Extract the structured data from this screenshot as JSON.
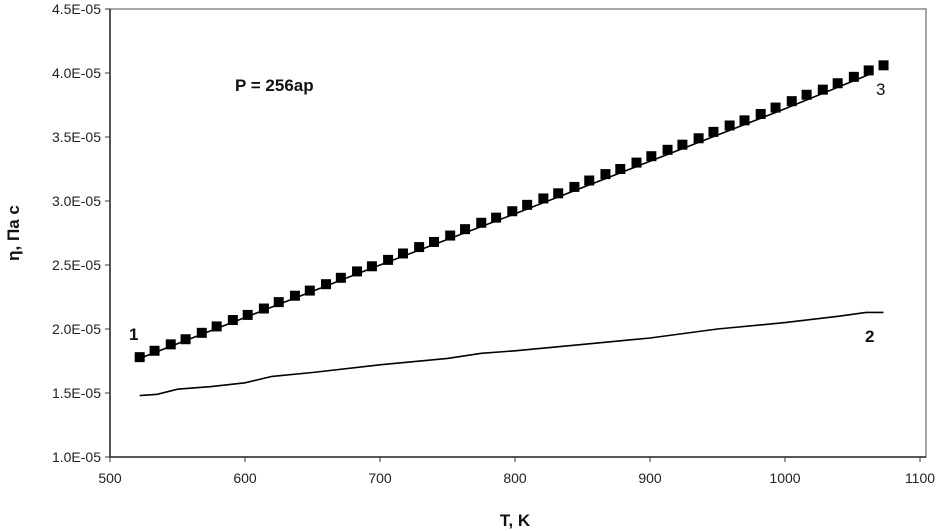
{
  "chart_data": {
    "type": "line",
    "xlabel": "T, K",
    "ylabel": "η, Па с",
    "xlim": [
      500,
      1100
    ],
    "ylim": [
      1e-05,
      4.5e-05
    ],
    "x_ticks": [
      500,
      600,
      700,
      800,
      900,
      1000,
      1100
    ],
    "x_tick_labels": [
      "500",
      "600",
      "700",
      "800",
      "900",
      "1000",
      "1100"
    ],
    "y_ticks": [
      1e-05,
      1.5e-05,
      2e-05,
      2.5e-05,
      3e-05,
      3.5e-05,
      4e-05,
      4.5e-05
    ],
    "y_tick_labels": [
      "1.0E-05",
      "1.5E-05",
      "2.0E-05",
      "2.5E-05",
      "3.0E-05",
      "3.5E-05",
      "4.0E-05",
      "4.5E-05"
    ],
    "grid": false,
    "annotation": "P = 256ap",
    "series": [
      {
        "label": "1",
        "style": "square markers",
        "color": "#000000",
        "x": [
          522,
          533,
          545,
          556,
          568,
          579,
          591,
          602,
          614,
          625,
          637,
          648,
          660,
          671,
          683,
          694,
          706,
          717,
          729,
          740,
          752,
          763,
          775,
          786,
          798,
          809,
          821,
          832,
          844,
          855,
          867,
          878,
          890,
          901,
          913,
          924,
          936,
          947,
          959,
          970,
          982,
          993,
          1005,
          1016,
          1028,
          1039,
          1051,
          1062,
          1073
        ],
        "y": [
          1.78e-05,
          1.83e-05,
          1.88e-05,
          1.92e-05,
          1.97e-05,
          2.02e-05,
          2.07e-05,
          2.11e-05,
          2.16e-05,
          2.21e-05,
          2.26e-05,
          2.3e-05,
          2.35e-05,
          2.4e-05,
          2.45e-05,
          2.49e-05,
          2.54e-05,
          2.59e-05,
          2.64e-05,
          2.68e-05,
          2.73e-05,
          2.78e-05,
          2.83e-05,
          2.87e-05,
          2.92e-05,
          2.97e-05,
          3.02e-05,
          3.06e-05,
          3.11e-05,
          3.16e-05,
          3.21e-05,
          3.25e-05,
          3.3e-05,
          3.35e-05,
          3.4e-05,
          3.44e-05,
          3.49e-05,
          3.54e-05,
          3.59e-05,
          3.63e-05,
          3.68e-05,
          3.73e-05,
          3.78e-05,
          3.83e-05,
          3.87e-05,
          3.92e-05,
          3.97e-05,
          4.02e-05,
          4.06e-05
        ]
      },
      {
        "label": "2",
        "style": "solid line",
        "color": "#000000",
        "x": [
          522,
          535,
          550,
          575,
          600,
          620,
          650,
          700,
          750,
          775,
          800,
          850,
          900,
          950,
          1000,
          1040,
          1060,
          1073
        ],
        "y": [
          1.48e-05,
          1.49e-05,
          1.53e-05,
          1.55e-05,
          1.58e-05,
          1.63e-05,
          1.66e-05,
          1.72e-05,
          1.77e-05,
          1.81e-05,
          1.83e-05,
          1.88e-05,
          1.93e-05,
          2e-05,
          2.05e-05,
          2.1e-05,
          2.13e-05,
          2.13e-05
        ]
      },
      {
        "label": "3",
        "style": "solid line",
        "color": "#000000",
        "x": [
          522,
          600,
          700,
          800,
          900,
          1000,
          1065
        ],
        "y": [
          1.77e-05,
          2.09e-05,
          2.5e-05,
          2.9e-05,
          3.31e-05,
          3.72e-05,
          4e-05
        ]
      }
    ]
  }
}
